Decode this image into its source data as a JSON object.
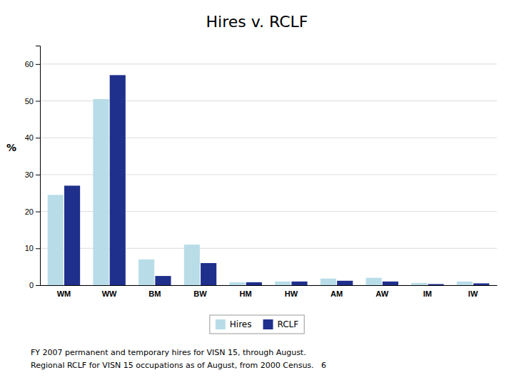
{
  "chart_data": {
    "type": "bar",
    "title": "Hires v. RCLF",
    "categories": [
      "WM",
      "WW",
      "BM",
      "BW",
      "HM",
      "HW",
      "AM",
      "AW",
      "IM",
      "IW"
    ],
    "series": [
      {
        "name": "Hires",
        "color": "#b8dde8",
        "values": [
          24.5,
          50.5,
          7.0,
          11.0,
          0.8,
          1.0,
          1.8,
          2.0,
          0.6,
          1.0
        ]
      },
      {
        "name": "RCLF",
        "color": "#1f2f8c",
        "values": [
          27.0,
          57.0,
          2.5,
          6.0,
          0.8,
          1.0,
          1.2,
          1.0,
          0.3,
          0.5
        ]
      }
    ],
    "ylabel": "%",
    "ylim": [
      0,
      65
    ],
    "yticks": [
      0,
      10,
      20,
      30,
      40,
      50,
      60
    ],
    "grid": true,
    "legend": "bottom",
    "annotations": [
      "FY 2007 permanent and temporary hires for VISN 15, through August.",
      "Regional RCLF for VISN 15 occupations as of August, from 2000 Census.   6"
    ]
  }
}
